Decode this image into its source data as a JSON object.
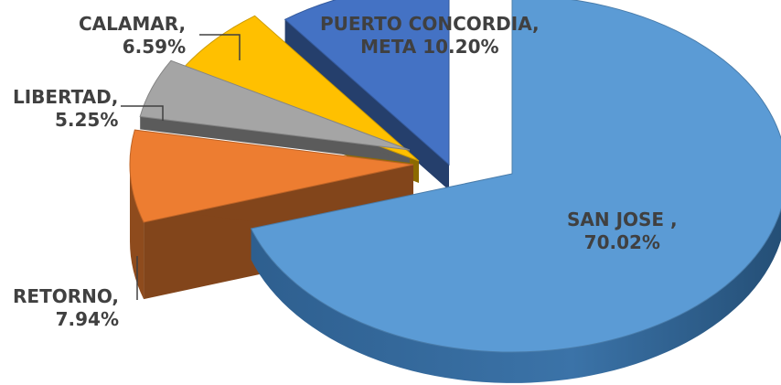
{
  "chart_data": {
    "type": "pie",
    "title": "",
    "categories": [
      "SAN JOSE",
      "RETORNO",
      "LIBERTAD",
      "CALAMAR",
      "PUERTO CONCORDIA, META"
    ],
    "values": [
      70.02,
      7.94,
      5.25,
      6.59,
      10.2
    ],
    "unit": "%",
    "labels": [
      {
        "name": "SAN JOSE ,",
        "pct": "70.02%"
      },
      {
        "name": "RETORNO,",
        "pct": "7.94%"
      },
      {
        "name": "LIBERTAD,",
        "pct": "5.25%"
      },
      {
        "name": "CALAMAR,",
        "pct": "6.59%"
      },
      {
        "name": "PUERTO CONCORDIA,",
        "pct": "META 10.20%"
      }
    ],
    "colors": [
      "#5B9BD5",
      "#ED7D31",
      "#A5A5A5",
      "#FFC000",
      "#4472C4"
    ],
    "style": "3d-exploded",
    "legend": "none"
  }
}
